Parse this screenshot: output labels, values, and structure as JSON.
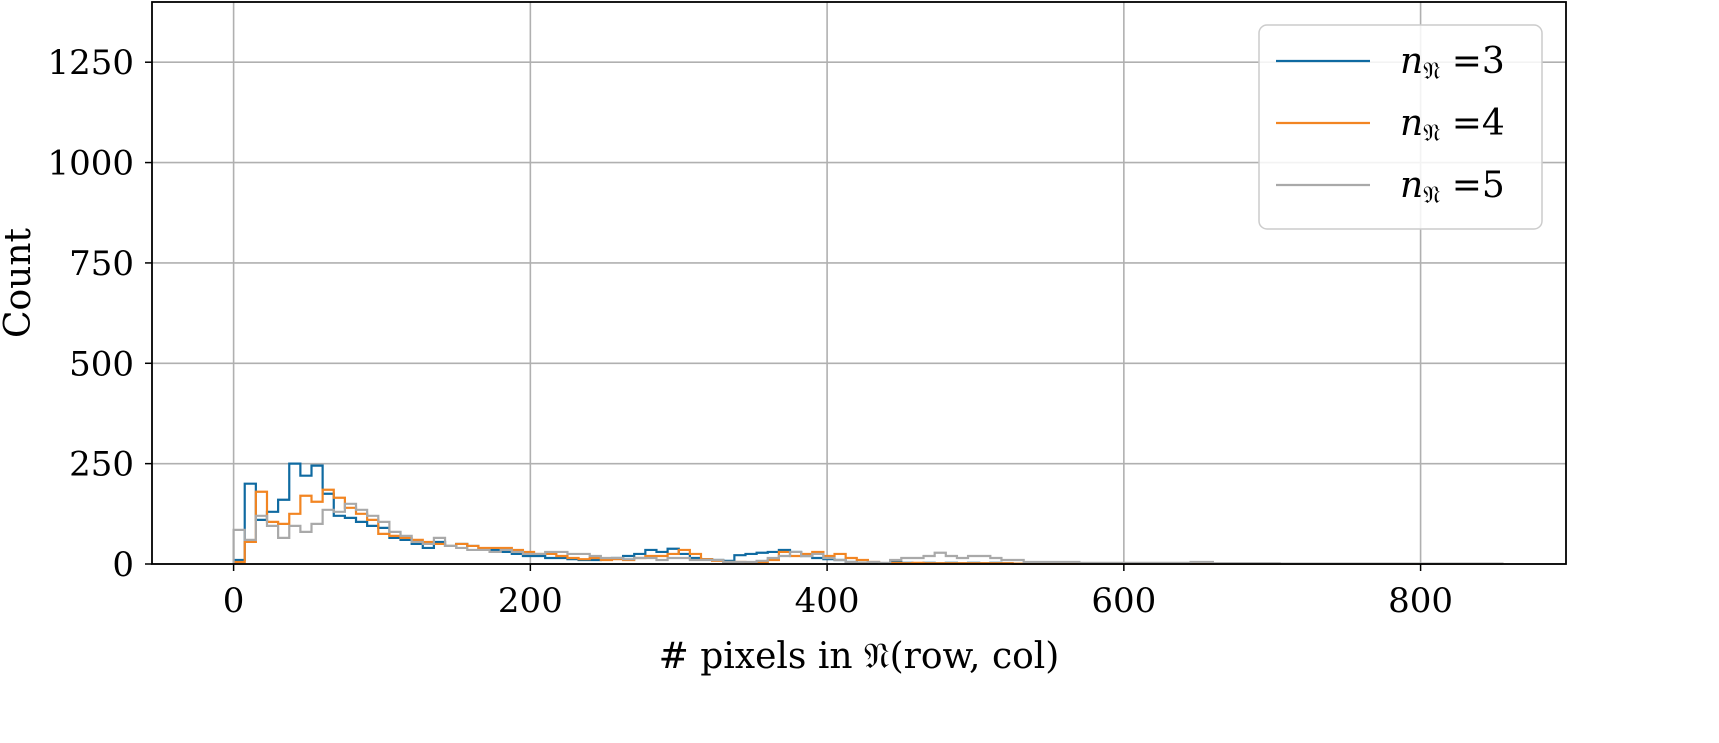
{
  "chart_data": {
    "type": "histogram-step",
    "xlabel": "# pixels in 𝔑(row, col)",
    "ylabel": "Count",
    "xlim": [
      -55,
      898
    ],
    "ylim": [
      0,
      1400
    ],
    "xticks": [
      0,
      200,
      400,
      600,
      800
    ],
    "yticks": [
      0,
      250,
      500,
      750,
      1000,
      1250
    ],
    "grid": true,
    "legend_position": "top-right",
    "bin_width": 7.5,
    "x_start": 0,
    "series": [
      {
        "name": "n𝔑 =3",
        "label_prefix": "n",
        "label_sub": "𝔑",
        "label_suffix": " =3",
        "color": "#0f6aa1",
        "values": [
          10,
          200,
          110,
          130,
          160,
          250,
          220,
          245,
          175,
          120,
          115,
          105,
          95,
          90,
          65,
          60,
          50,
          40,
          55,
          45,
          50,
          45,
          35,
          35,
          30,
          25,
          20,
          20,
          15,
          15,
          12,
          10,
          10,
          12,
          15,
          20,
          25,
          35,
          30,
          38,
          25,
          15,
          12,
          10,
          8,
          22,
          25,
          28,
          30,
          35,
          30,
          20,
          15,
          12,
          10,
          5,
          3,
          3,
          2,
          5,
          3,
          2,
          3,
          2,
          3,
          2,
          3,
          2,
          3,
          2,
          1,
          1,
          1,
          1,
          1,
          1,
          1,
          1,
          1,
          1,
          1,
          1,
          1,
          1,
          1,
          1,
          1,
          1,
          1,
          1,
          1,
          1,
          1,
          1,
          1,
          1,
          1,
          1,
          1,
          1,
          1,
          1,
          1,
          1,
          1,
          1,
          1,
          1,
          1,
          1,
          1,
          1,
          1,
          1
        ]
      },
      {
        "name": "n𝔑 =4",
        "label_prefix": "n",
        "label_sub": "𝔑",
        "label_suffix": " =4",
        "color": "#f28522",
        "values": [
          5,
          55,
          180,
          105,
          100,
          125,
          170,
          155,
          185,
          165,
          140,
          125,
          110,
          75,
          70,
          65,
          60,
          55,
          50,
          45,
          50,
          45,
          40,
          40,
          40,
          35,
          30,
          25,
          25,
          20,
          15,
          12,
          15,
          10,
          12,
          10,
          15,
          20,
          20,
          25,
          35,
          25,
          12,
          8,
          5,
          5,
          3,
          5,
          10,
          30,
          20,
          25,
          30,
          20,
          25,
          15,
          10,
          5,
          2,
          3,
          2,
          3,
          2,
          2,
          2,
          2,
          2,
          2,
          2,
          2,
          1,
          1,
          1,
          1,
          1,
          1,
          1,
          1,
          1,
          1,
          1,
          1,
          1,
          1,
          1,
          1,
          1,
          1,
          1,
          1,
          1,
          1,
          1,
          1,
          1,
          1,
          1,
          1,
          1,
          1,
          1,
          1,
          1,
          1,
          1,
          1,
          1,
          1,
          1,
          1,
          1,
          1,
          1,
          1
        ]
      },
      {
        "name": "n𝔑 =5",
        "label_prefix": "n",
        "label_sub": "𝔑",
        "label_suffix": " =5",
        "color": "#a9a9a9",
        "values": [
          85,
          60,
          120,
          95,
          65,
          95,
          80,
          100,
          135,
          130,
          150,
          135,
          120,
          105,
          80,
          70,
          55,
          50,
          65,
          45,
          40,
          35,
          35,
          30,
          35,
          30,
          25,
          25,
          30,
          30,
          25,
          25,
          20,
          15,
          15,
          12,
          15,
          15,
          10,
          15,
          15,
          10,
          10,
          10,
          5,
          5,
          5,
          8,
          15,
          20,
          30,
          20,
          25,
          15,
          10,
          5,
          3,
          5,
          3,
          10,
          15,
          15,
          20,
          28,
          20,
          15,
          20,
          20,
          15,
          10,
          10,
          5,
          5,
          5,
          5,
          5,
          3,
          3,
          3,
          3,
          3,
          3,
          3,
          3,
          3,
          3,
          5,
          5,
          2,
          2,
          2,
          2,
          2,
          2,
          1,
          1,
          1,
          1,
          1,
          1,
          1,
          1,
          1,
          1,
          1,
          1,
          1,
          1,
          1,
          1,
          1,
          1,
          1,
          1
        ]
      }
    ]
  }
}
